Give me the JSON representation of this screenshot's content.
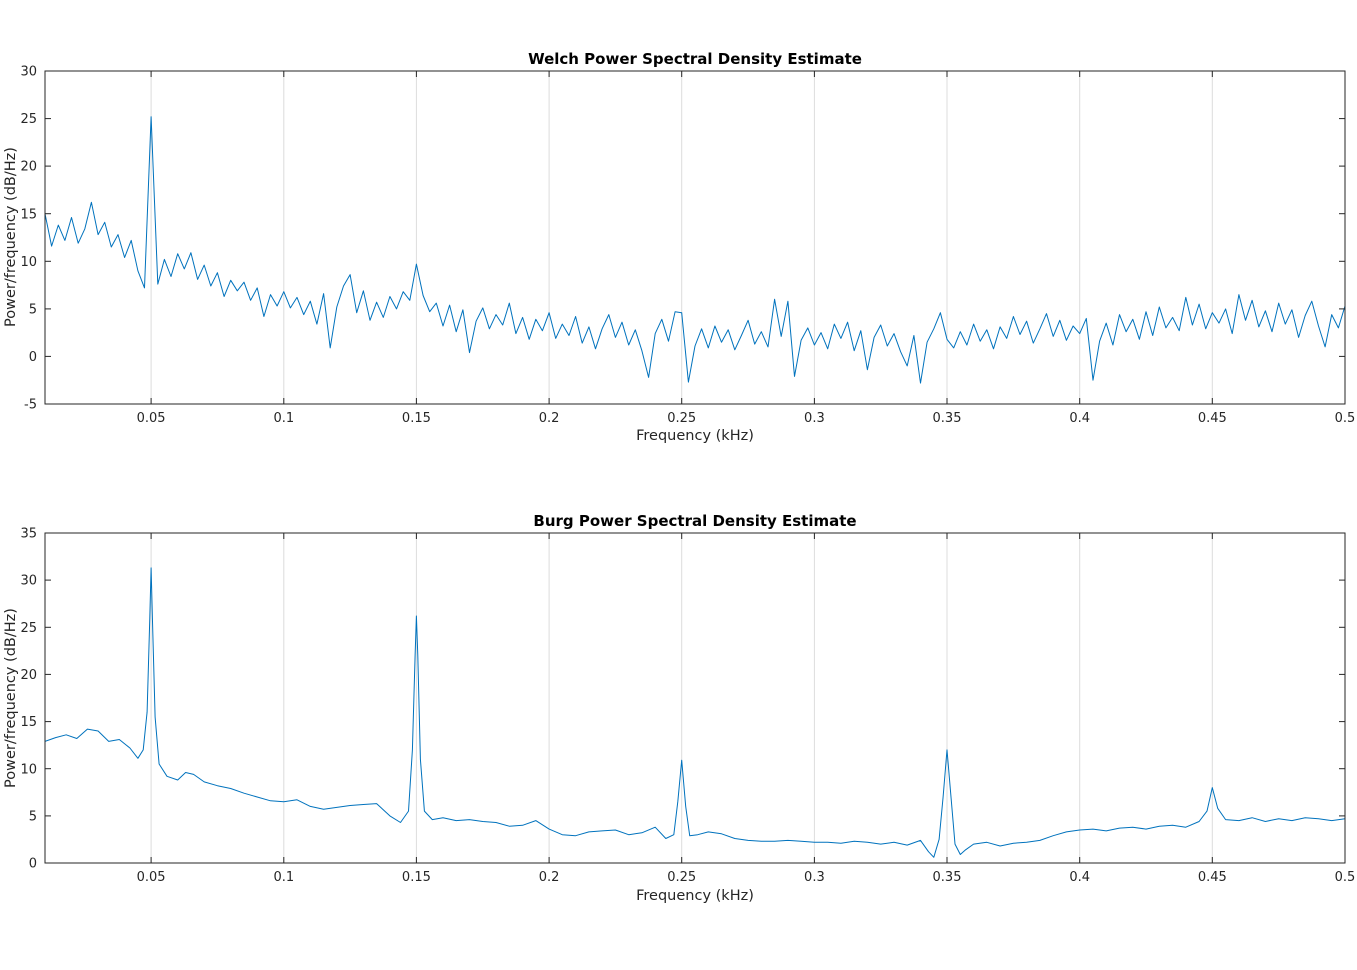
{
  "figure": {
    "background": "#ffffff",
    "axes_color": "#262626",
    "grid_color": "#dcdcdc"
  },
  "chart_data": [
    {
      "type": "line",
      "title": "Welch Power Spectral Density Estimate",
      "xlabel": "Frequency (kHz)",
      "ylabel": "Power/frequency (dB/Hz)",
      "xlim": [
        0.01,
        0.5
      ],
      "ylim": [
        -5,
        30
      ],
      "xticks": [
        0.05,
        0.1,
        0.15,
        0.2,
        0.25,
        0.3,
        0.35,
        0.4,
        0.45,
        0.5
      ],
      "xtick_labels": [
        "0.05",
        "0.1",
        "0.15",
        "0.2",
        "0.25",
        "0.3",
        "0.35",
        "0.4",
        "0.45",
        "0.5"
      ],
      "yticks": [
        -5,
        0,
        5,
        10,
        15,
        20,
        25,
        30
      ],
      "ytick_labels": [
        "-5",
        "0",
        "5",
        "10",
        "15",
        "20",
        "25",
        "30"
      ],
      "grid": "vertical-only",
      "legend": "none",
      "line_color": "#0072BD",
      "x_start": 0.01,
      "x_step": 0.0025,
      "y": [
        15.0,
        11.6,
        13.8,
        12.2,
        14.6,
        11.9,
        13.4,
        16.2,
        12.8,
        14.1,
        11.5,
        12.8,
        10.4,
        12.2,
        9.0,
        7.2,
        25.2,
        7.6,
        10.2,
        8.4,
        10.8,
        9.2,
        10.9,
        8.1,
        9.6,
        7.4,
        8.8,
        6.3,
        8.0,
        6.9,
        7.8,
        5.9,
        7.2,
        4.2,
        6.5,
        5.3,
        6.8,
        5.1,
        6.2,
        4.4,
        5.8,
        3.4,
        6.6,
        0.9,
        5.2,
        7.4,
        8.6,
        4.6,
        6.9,
        3.8,
        5.7,
        4.1,
        6.3,
        5.0,
        6.8,
        5.9,
        9.7,
        6.4,
        4.7,
        5.6,
        3.2,
        5.4,
        2.6,
        4.9,
        0.4,
        3.7,
        5.1,
        2.9,
        4.4,
        3.3,
        5.6,
        2.4,
        4.1,
        1.8,
        3.9,
        2.7,
        4.6,
        1.9,
        3.4,
        2.2,
        4.2,
        1.4,
        3.1,
        0.8,
        2.9,
        4.4,
        2.0,
        3.6,
        1.2,
        2.8,
        0.6,
        -2.2,
        2.4,
        3.9,
        1.6,
        4.7,
        4.6,
        -2.7,
        1.1,
        2.9,
        0.9,
        3.2,
        1.5,
        2.8,
        0.7,
        2.2,
        3.8,
        1.3,
        2.6,
        1.0,
        6.0,
        2.1,
        5.8,
        -2.1,
        1.7,
        3.0,
        1.2,
        2.5,
        0.8,
        3.4,
        1.9,
        3.6,
        0.6,
        2.7,
        -1.4,
        2.0,
        3.3,
        1.1,
        2.4,
        0.5,
        -1.0,
        2.2,
        -2.8,
        1.5,
        2.9,
        4.6,
        1.8,
        0.9,
        2.6,
        1.2,
        3.4,
        1.6,
        2.8,
        0.8,
        3.1,
        1.9,
        4.2,
        2.3,
        3.7,
        1.4,
        2.9,
        4.5,
        2.1,
        3.8,
        1.7,
        3.2,
        2.4,
        4.0,
        -2.5,
        1.6,
        3.5,
        1.2,
        4.4,
        2.6,
        3.9,
        1.8,
        4.7,
        2.2,
        5.2,
        3.0,
        4.1,
        2.7,
        6.2,
        3.3,
        5.5,
        2.9,
        4.6,
        3.5,
        5.0,
        2.4,
        6.5,
        3.8,
        5.9,
        3.1,
        4.8,
        2.6,
        5.6,
        3.4,
        4.9,
        2.0,
        4.3,
        5.8,
        3.2,
        1.0,
        4.4,
        3.0,
        5.3
      ]
    },
    {
      "type": "line",
      "title": "Burg Power Spectral Density Estimate",
      "xlabel": "Frequency (kHz)",
      "ylabel": "Power/frequency (dB/Hz)",
      "xlim": [
        0.01,
        0.5
      ],
      "ylim": [
        0,
        35
      ],
      "xticks": [
        0.05,
        0.1,
        0.15,
        0.2,
        0.25,
        0.3,
        0.35,
        0.4,
        0.45,
        0.5
      ],
      "xtick_labels": [
        "0.05",
        "0.1",
        "0.15",
        "0.2",
        "0.25",
        "0.3",
        "0.35",
        "0.4",
        "0.45",
        "0.5"
      ],
      "yticks": [
        0,
        5,
        10,
        15,
        20,
        25,
        30,
        35
      ],
      "ytick_labels": [
        "0",
        "5",
        "10",
        "15",
        "20",
        "25",
        "30",
        "35"
      ],
      "grid": "vertical-only",
      "legend": "none",
      "line_color": "#0072BD",
      "peaks": [
        {
          "x": 0.05,
          "y": 31.3
        },
        {
          "x": 0.15,
          "y": 26.2
        },
        {
          "x": 0.25,
          "y": 10.9
        },
        {
          "x": 0.35,
          "y": 12.0
        },
        {
          "x": 0.45,
          "y": 8.0
        }
      ],
      "points": [
        [
          0.01,
          12.9
        ],
        [
          0.014,
          13.3
        ],
        [
          0.018,
          13.6
        ],
        [
          0.022,
          13.2
        ],
        [
          0.026,
          14.2
        ],
        [
          0.03,
          14.0
        ],
        [
          0.034,
          12.9
        ],
        [
          0.038,
          13.1
        ],
        [
          0.042,
          12.2
        ],
        [
          0.045,
          11.1
        ],
        [
          0.047,
          12.0
        ],
        [
          0.0485,
          16.0
        ],
        [
          0.0495,
          26.0
        ],
        [
          0.05,
          31.3
        ],
        [
          0.0505,
          26.0
        ],
        [
          0.0515,
          15.5
        ],
        [
          0.053,
          10.5
        ],
        [
          0.056,
          9.2
        ],
        [
          0.06,
          8.8
        ],
        [
          0.063,
          9.6
        ],
        [
          0.066,
          9.4
        ],
        [
          0.07,
          8.6
        ],
        [
          0.075,
          8.2
        ],
        [
          0.08,
          7.9
        ],
        [
          0.085,
          7.4
        ],
        [
          0.09,
          7.0
        ],
        [
          0.095,
          6.6
        ],
        [
          0.1,
          6.5
        ],
        [
          0.105,
          6.7
        ],
        [
          0.11,
          6.0
        ],
        [
          0.115,
          5.7
        ],
        [
          0.12,
          5.9
        ],
        [
          0.125,
          6.1
        ],
        [
          0.13,
          6.2
        ],
        [
          0.135,
          6.3
        ],
        [
          0.14,
          5.0
        ],
        [
          0.144,
          4.3
        ],
        [
          0.147,
          5.5
        ],
        [
          0.1485,
          12.0
        ],
        [
          0.1495,
          22.0
        ],
        [
          0.15,
          26.2
        ],
        [
          0.1505,
          22.0
        ],
        [
          0.1515,
          11.0
        ],
        [
          0.153,
          5.5
        ],
        [
          0.156,
          4.6
        ],
        [
          0.16,
          4.8
        ],
        [
          0.165,
          4.5
        ],
        [
          0.17,
          4.6
        ],
        [
          0.175,
          4.4
        ],
        [
          0.18,
          4.3
        ],
        [
          0.185,
          3.9
        ],
        [
          0.19,
          4.0
        ],
        [
          0.195,
          4.5
        ],
        [
          0.2,
          3.6
        ],
        [
          0.205,
          3.0
        ],
        [
          0.21,
          2.9
        ],
        [
          0.215,
          3.3
        ],
        [
          0.22,
          3.4
        ],
        [
          0.225,
          3.5
        ],
        [
          0.23,
          3.0
        ],
        [
          0.235,
          3.2
        ],
        [
          0.24,
          3.8
        ],
        [
          0.244,
          2.6
        ],
        [
          0.247,
          3.0
        ],
        [
          0.2485,
          6.5
        ],
        [
          0.25,
          10.9
        ],
        [
          0.2515,
          6.0
        ],
        [
          0.253,
          2.9
        ],
        [
          0.256,
          3.0
        ],
        [
          0.26,
          3.3
        ],
        [
          0.265,
          3.1
        ],
        [
          0.27,
          2.6
        ],
        [
          0.275,
          2.4
        ],
        [
          0.28,
          2.3
        ],
        [
          0.285,
          2.3
        ],
        [
          0.29,
          2.4
        ],
        [
          0.295,
          2.3
        ],
        [
          0.3,
          2.2
        ],
        [
          0.305,
          2.2
        ],
        [
          0.31,
          2.1
        ],
        [
          0.315,
          2.3
        ],
        [
          0.32,
          2.2
        ],
        [
          0.325,
          2.0
        ],
        [
          0.33,
          2.2
        ],
        [
          0.335,
          1.9
        ],
        [
          0.34,
          2.4
        ],
        [
          0.343,
          1.2
        ],
        [
          0.345,
          0.6
        ],
        [
          0.347,
          2.5
        ],
        [
          0.3485,
          7.0
        ],
        [
          0.35,
          12.0
        ],
        [
          0.3515,
          7.0
        ],
        [
          0.353,
          2.0
        ],
        [
          0.355,
          0.9
        ],
        [
          0.357,
          1.4
        ],
        [
          0.36,
          2.0
        ],
        [
          0.365,
          2.2
        ],
        [
          0.37,
          1.8
        ],
        [
          0.375,
          2.1
        ],
        [
          0.38,
          2.2
        ],
        [
          0.385,
          2.4
        ],
        [
          0.39,
          2.9
        ],
        [
          0.395,
          3.3
        ],
        [
          0.4,
          3.5
        ],
        [
          0.405,
          3.6
        ],
        [
          0.41,
          3.4
        ],
        [
          0.415,
          3.7
        ],
        [
          0.42,
          3.8
        ],
        [
          0.425,
          3.6
        ],
        [
          0.43,
          3.9
        ],
        [
          0.435,
          4.0
        ],
        [
          0.44,
          3.8
        ],
        [
          0.445,
          4.4
        ],
        [
          0.448,
          5.5
        ],
        [
          0.45,
          8.0
        ],
        [
          0.452,
          5.8
        ],
        [
          0.455,
          4.6
        ],
        [
          0.46,
          4.5
        ],
        [
          0.465,
          4.8
        ],
        [
          0.47,
          4.4
        ],
        [
          0.475,
          4.7
        ],
        [
          0.48,
          4.5
        ],
        [
          0.485,
          4.8
        ],
        [
          0.49,
          4.7
        ],
        [
          0.495,
          4.5
        ],
        [
          0.5,
          4.7
        ]
      ]
    }
  ]
}
